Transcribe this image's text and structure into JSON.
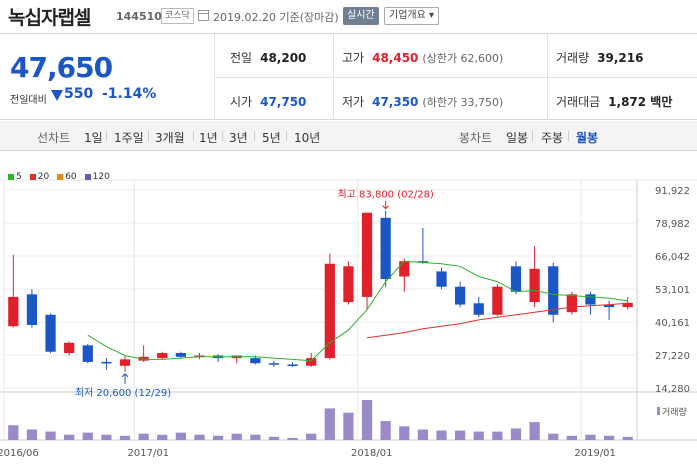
{
  "header": {
    "stock_name": "녹십자랩셀",
    "stock_code": "144510",
    "market": "코스닥",
    "date": "2019.02.20 기준(장마감)",
    "realtime_label": "실시간",
    "info_label": "기업개요 ▾"
  },
  "price": {
    "current": "47,650",
    "change_label": "전일대비",
    "change_amount": "550",
    "change_pct": "-1.14%"
  },
  "stats": {
    "prev_close": {
      "label": "전일",
      "value": "48,200"
    },
    "high": {
      "label": "고가",
      "value": "48,450",
      "sub": "(상한가 62,600)"
    },
    "volume": {
      "label": "거래량",
      "value": "39,216"
    },
    "open": {
      "label": "시가",
      "value": "47,750"
    },
    "low": {
      "label": "저가",
      "value": "47,350",
      "sub": "(하한가 33,750)"
    },
    "amount": {
      "label": "거래대금",
      "value": "1,872 백만"
    }
  },
  "periods": {
    "line_label": "선차트",
    "line_items": [
      "1일",
      "1주일",
      "3개월",
      "1년",
      "3년",
      "5년",
      "10년"
    ],
    "candle_label": "봉차트",
    "candle_items": [
      "일봉",
      "주봉",
      "월봉"
    ],
    "active_candle": "월봉"
  },
  "colors": {
    "up": "#e0202a",
    "down": "#1a56c4",
    "ma5": "#2fb02f",
    "ma20": "#e03030",
    "ma60": "#f08a00",
    "ma120": "#6a5bb0",
    "volume": "#9b8ac8"
  },
  "chart_data": {
    "type": "candlestick",
    "legend": [
      "5",
      "20",
      "60",
      "120"
    ],
    "y_ticks": [
      "91,922",
      "78,982",
      "66,042",
      "53,101",
      "40,161",
      "27,220",
      "14,280"
    ],
    "y_tick_values": [
      91922,
      78982,
      66042,
      53101,
      40161,
      27220,
      14280
    ],
    "ylim": [
      14280,
      91922
    ],
    "x_ticks": [
      {
        "label": "2016/06",
        "index": 0
      },
      {
        "label": "2017/01",
        "index": 7
      },
      {
        "label": "2018/01",
        "index": 19
      },
      {
        "label": "2019/01",
        "index": 31
      }
    ],
    "annotations": {
      "high": {
        "label": "최고 83,800 (02/28)",
        "index": 20
      },
      "low": {
        "label": "최저 20,600 (12/29)",
        "index": 6
      }
    },
    "volume_label": "거래량",
    "candles": [
      {
        "o": 38500,
        "h": 66500,
        "l": 38000,
        "c": 50000
      },
      {
        "o": 51000,
        "h": 53000,
        "l": 38000,
        "c": 39000
      },
      {
        "o": 43000,
        "h": 43500,
        "l": 28000,
        "c": 28500
      },
      {
        "o": 28000,
        "h": 32500,
        "l": 27000,
        "c": 32000
      },
      {
        "o": 31000,
        "h": 31500,
        "l": 24000,
        "c": 24500
      },
      {
        "o": 24500,
        "h": 26000,
        "l": 21500,
        "c": 24000
      },
      {
        "o": 23000,
        "h": 27000,
        "l": 20600,
        "c": 25500
      },
      {
        "o": 25000,
        "h": 31000,
        "l": 24500,
        "c": 26500
      },
      {
        "o": 26000,
        "h": 28500,
        "l": 25500,
        "c": 28000
      },
      {
        "o": 28000,
        "h": 28500,
        "l": 26000,
        "c": 26500
      },
      {
        "o": 26500,
        "h": 28000,
        "l": 25500,
        "c": 27000
      },
      {
        "o": 27000,
        "h": 27500,
        "l": 24500,
        "c": 26000
      },
      {
        "o": 26000,
        "h": 27000,
        "l": 24000,
        "c": 27000
      },
      {
        "o": 26000,
        "h": 27000,
        "l": 23500,
        "c": 24000
      },
      {
        "o": 24000,
        "h": 25000,
        "l": 22500,
        "c": 23500
      },
      {
        "o": 23500,
        "h": 24500,
        "l": 22500,
        "c": 23000
      },
      {
        "o": 23000,
        "h": 28000,
        "l": 22500,
        "c": 26000
      },
      {
        "o": 26000,
        "h": 67000,
        "l": 25500,
        "c": 63000
      },
      {
        "o": 48000,
        "h": 64000,
        "l": 47000,
        "c": 62000
      },
      {
        "o": 50000,
        "h": 83000,
        "l": 45000,
        "c": 83000
      },
      {
        "o": 81000,
        "h": 83800,
        "l": 54000,
        "c": 57000
      },
      {
        "o": 58000,
        "h": 65000,
        "l": 52000,
        "c": 64000
      },
      {
        "o": 64000,
        "h": 77000,
        "l": 63000,
        "c": 63500
      },
      {
        "o": 60000,
        "h": 61500,
        "l": 53000,
        "c": 54000
      },
      {
        "o": 54000,
        "h": 56000,
        "l": 46000,
        "c": 47000
      },
      {
        "o": 47500,
        "h": 50000,
        "l": 42000,
        "c": 43000
      },
      {
        "o": 43000,
        "h": 55000,
        "l": 42500,
        "c": 54000
      },
      {
        "o": 62000,
        "h": 64000,
        "l": 51000,
        "c": 52000
      },
      {
        "o": 48000,
        "h": 70000,
        "l": 46000,
        "c": 61000
      },
      {
        "o": 62000,
        "h": 63500,
        "l": 40000,
        "c": 43000
      },
      {
        "o": 44000,
        "h": 52000,
        "l": 43000,
        "c": 51000
      },
      {
        "o": 51000,
        "h": 52000,
        "l": 43000,
        "c": 47000
      },
      {
        "o": 47000,
        "h": 48500,
        "l": 41000,
        "c": 46000
      },
      {
        "o": 46000,
        "h": 50000,
        "l": 45000,
        "c": 47650
      }
    ],
    "ma5": [
      null,
      null,
      null,
      null,
      35000,
      30500,
      27000,
      25500,
      25500,
      26000,
      26500,
      26500,
      26500,
      26500,
      26000,
      25500,
      25000,
      32000,
      37000,
      45000,
      56000,
      64000,
      63500,
      63000,
      62000,
      58000,
      56000,
      52000,
      52500,
      51000,
      50500,
      50000,
      49500,
      48500
    ],
    "ma20": [
      null,
      null,
      null,
      null,
      null,
      null,
      null,
      null,
      null,
      null,
      null,
      null,
      null,
      null,
      null,
      null,
      null,
      null,
      null,
      34000,
      35000,
      36000,
      37500,
      38500,
      39500,
      41000,
      42000,
      43000,
      44000,
      45000,
      46000,
      46500,
      47000,
      47500
    ],
    "volumes": [
      14,
      10,
      8,
      5,
      7,
      5,
      4,
      6,
      5,
      7,
      5,
      4,
      6,
      5,
      3,
      2,
      6,
      30,
      26,
      38,
      18,
      13,
      10,
      9,
      9,
      8,
      8,
      11,
      17,
      6,
      4,
      5,
      4,
      3
    ]
  }
}
